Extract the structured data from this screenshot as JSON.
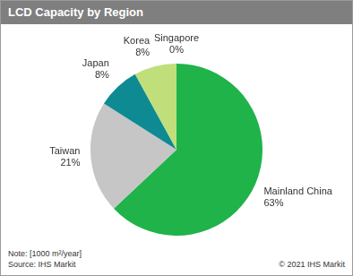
{
  "chart_data": {
    "type": "pie",
    "title": "LCD Capacity by Region",
    "categories": [
      "Mainland China",
      "Taiwan",
      "Japan",
      "Korea",
      "Singapore"
    ],
    "values": [
      63,
      21,
      8,
      8,
      0
    ],
    "value_labels": [
      "63%",
      "21%",
      "8%",
      "8%",
      "0%"
    ],
    "colors": [
      "#1fb34a",
      "#c6c6c6",
      "#0e8a92",
      "#c0df7a",
      "#5d9c3a"
    ],
    "data_labels": true,
    "annotations": [
      "Note: [1000 m²/year]",
      "Source: IHS Markit",
      "© 2021 IHS Markit"
    ]
  }
}
